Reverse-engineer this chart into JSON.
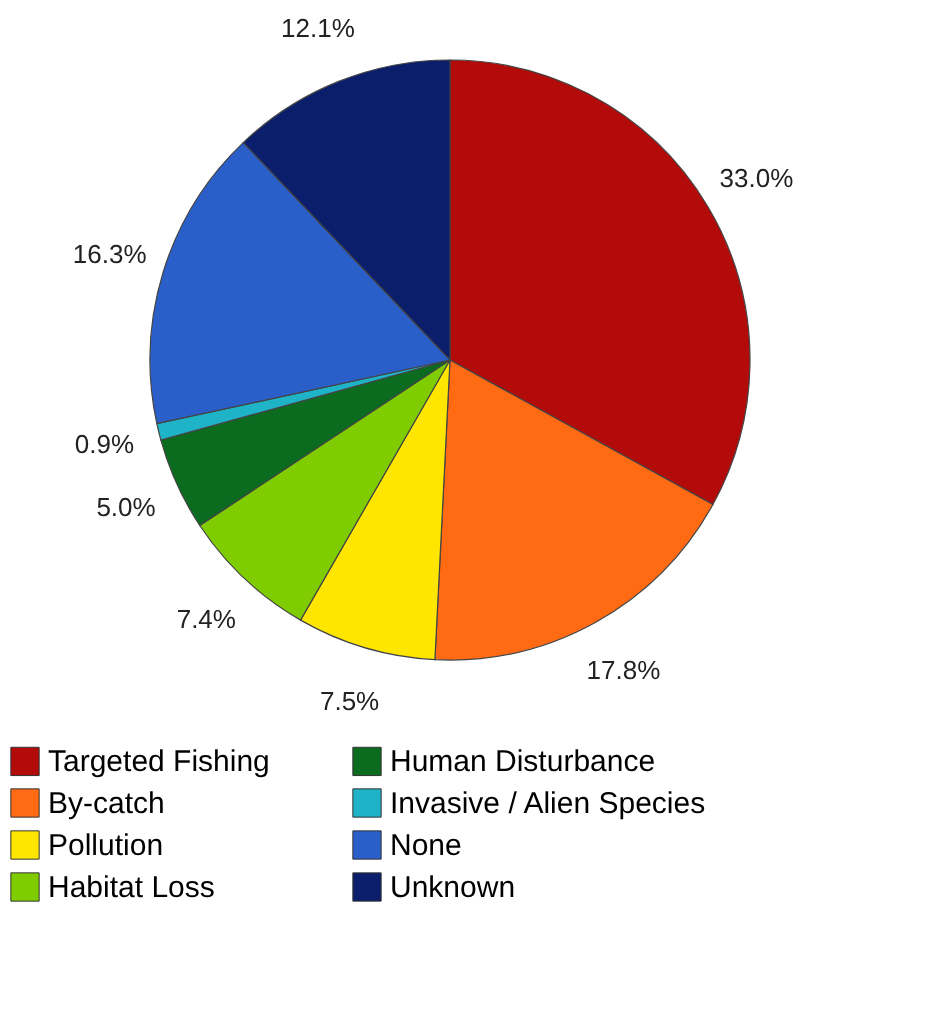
{
  "chart_data": {
    "type": "pie",
    "categories": [
      "Targeted Fishing",
      "By-catch",
      "Pollution",
      "Habitat Loss",
      "Human Disturbance",
      "Invasive / Alien Species",
      "None",
      "Unknown"
    ],
    "values": [
      33.0,
      17.8,
      7.5,
      7.4,
      5.0,
      0.9,
      16.3,
      12.1
    ],
    "value_labels": [
      "33.0%",
      "17.8%",
      "7.5%",
      "7.4%",
      "5.0%",
      "0.9%",
      "16.3%",
      "12.1%"
    ],
    "colors": [
      "#b30a0a",
      "#ff6a13",
      "#ffe600",
      "#7fcc00",
      "#0b6b1f",
      "#1fb3c8",
      "#2a5fc9",
      "#0a1e6b"
    ],
    "legend": "bottom"
  }
}
